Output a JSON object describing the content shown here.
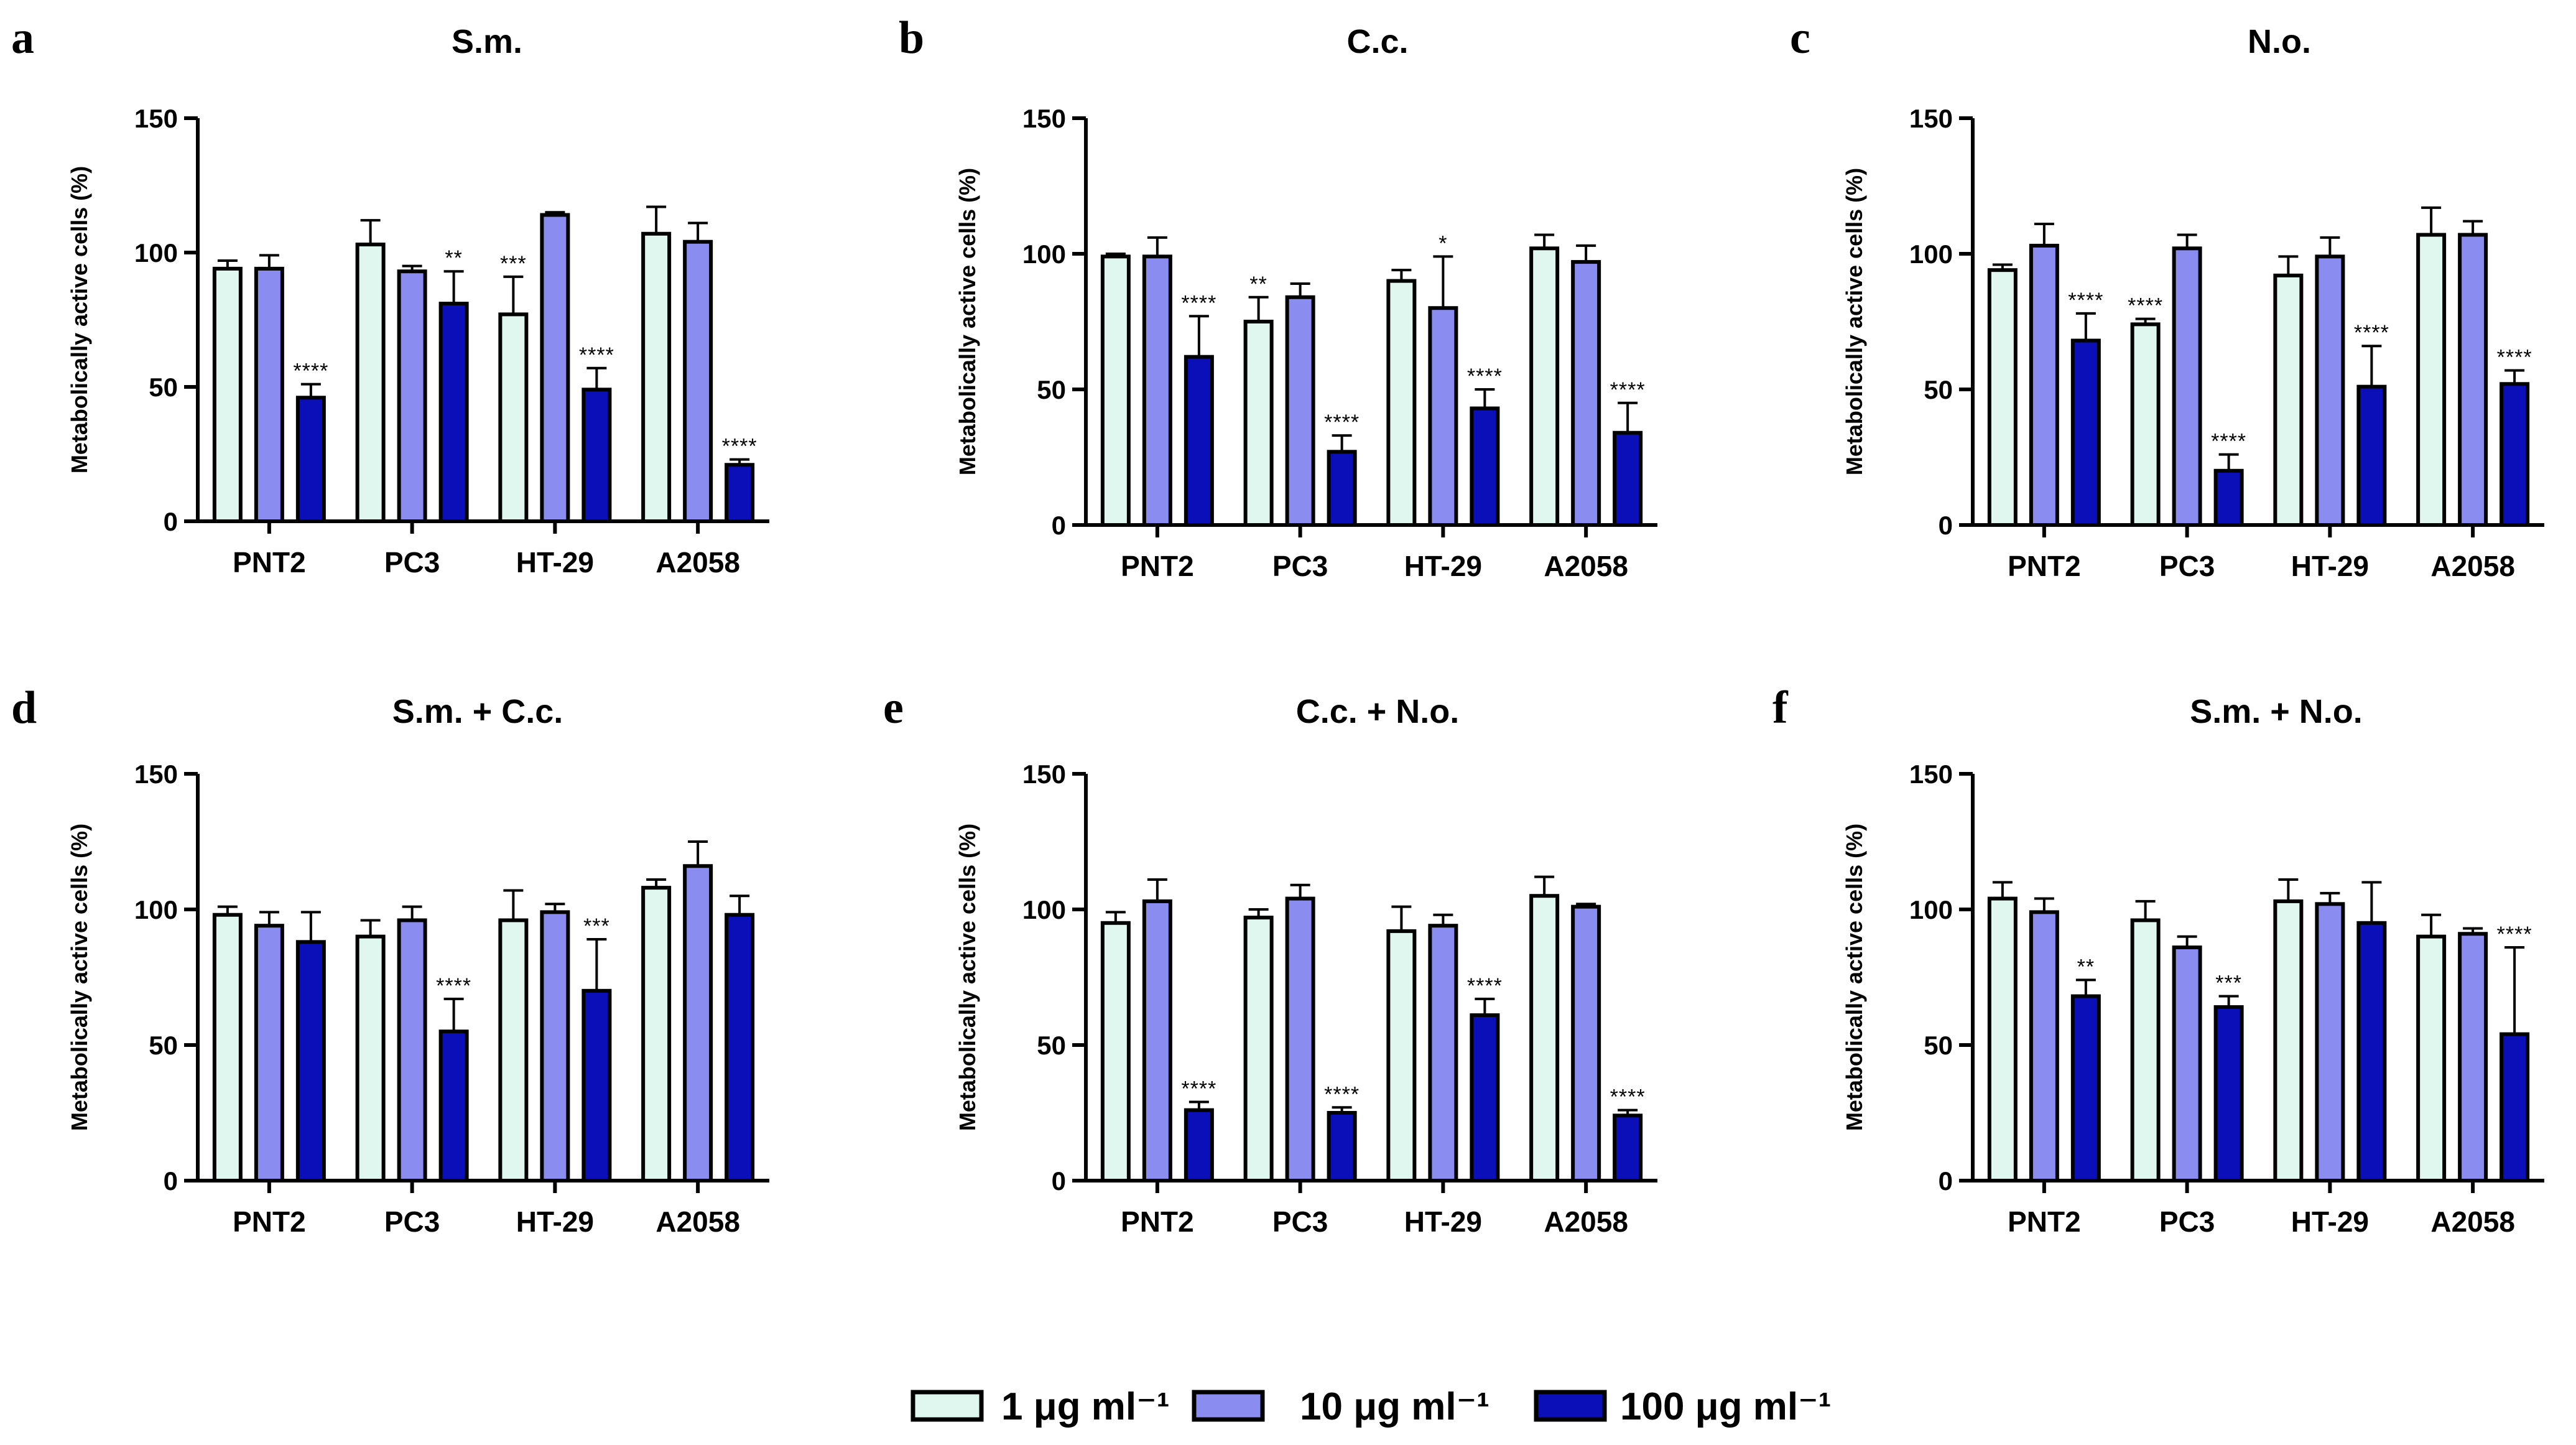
{
  "colors": {
    "c1": "#dff7ee",
    "c10": "#8a8cf0",
    "c100": "#0a0fb8",
    "axis": "#000000"
  },
  "legend": {
    "items": [
      {
        "label": "1 μg ml⁻¹",
        "color_key": "c1"
      },
      {
        "label": "10 μg ml⁻¹",
        "color_key": "c10"
      },
      {
        "label": "100 μg ml⁻¹",
        "color_key": "c100"
      }
    ]
  },
  "chart_data": [
    {
      "panel": "a",
      "title": "S.m.",
      "type": "bar",
      "ylabel": "Metabolically active cells (%)",
      "ylim": [
        0,
        150
      ],
      "yticks": [
        0,
        50,
        100,
        150
      ],
      "categories": [
        "PNT2",
        "PC3",
        "HT-29",
        "A2058"
      ],
      "series": [
        {
          "name": "1 μg ml⁻¹",
          "values": [
            94,
            103,
            77,
            107
          ],
          "errors": [
            3,
            9,
            14,
            10
          ],
          "stars": [
            "",
            "",
            "***",
            ""
          ]
        },
        {
          "name": "10 μg ml⁻¹",
          "values": [
            94,
            93,
            114,
            104
          ],
          "errors": [
            5,
            2,
            1,
            7
          ],
          "stars": [
            "",
            "",
            "",
            ""
          ]
        },
        {
          "name": "100 μg ml⁻¹",
          "values": [
            46,
            81,
            49,
            21
          ],
          "errors": [
            5,
            12,
            8,
            2
          ],
          "stars": [
            "****",
            "**",
            "****",
            "****"
          ]
        }
      ]
    },
    {
      "panel": "b",
      "title": "C.c.",
      "type": "bar",
      "ylabel": "Metabolically active cells (%)",
      "ylim": [
        0,
        150
      ],
      "yticks": [
        0,
        50,
        100,
        150
      ],
      "categories": [
        "PNT2",
        "PC3",
        "HT-29",
        "A2058"
      ],
      "series": [
        {
          "name": "1 μg ml⁻¹",
          "values": [
            99,
            75,
            90,
            102
          ],
          "errors": [
            1,
            9,
            4,
            5
          ],
          "stars": [
            "",
            "**",
            "",
            ""
          ]
        },
        {
          "name": "10 μg ml⁻¹",
          "values": [
            99,
            84,
            80,
            97
          ],
          "errors": [
            7,
            5,
            19,
            6
          ],
          "stars": [
            "",
            "",
            "*",
            ""
          ]
        },
        {
          "name": "100 μg ml⁻¹",
          "values": [
            62,
            27,
            43,
            34
          ],
          "errors": [
            15,
            6,
            7,
            11
          ],
          "stars": [
            "****",
            "****",
            "****",
            "****"
          ]
        }
      ]
    },
    {
      "panel": "c",
      "title": "N.o.",
      "type": "bar",
      "ylabel": "Metabolically active cells (%)",
      "ylim": [
        0,
        150
      ],
      "yticks": [
        0,
        50,
        100,
        150
      ],
      "categories": [
        "PNT2",
        "PC3",
        "HT-29",
        "A2058"
      ],
      "series": [
        {
          "name": "1 μg ml⁻¹",
          "values": [
            94,
            74,
            92,
            107
          ],
          "errors": [
            2,
            2,
            7,
            10
          ],
          "stars": [
            "",
            "****",
            "",
            ""
          ]
        },
        {
          "name": "10 μg ml⁻¹",
          "values": [
            103,
            102,
            99,
            107
          ],
          "errors": [
            8,
            5,
            7,
            5
          ],
          "stars": [
            "",
            "",
            "",
            ""
          ]
        },
        {
          "name": "100 μg ml⁻¹",
          "values": [
            68,
            20,
            51,
            52
          ],
          "errors": [
            10,
            6,
            15,
            5
          ],
          "stars": [
            "****",
            "****",
            "****",
            "****"
          ]
        }
      ]
    },
    {
      "panel": "d",
      "title": "S.m. + C.c.",
      "type": "bar",
      "ylabel": "Metabolically active cells (%)",
      "ylim": [
        0,
        150
      ],
      "yticks": [
        0,
        50,
        100,
        150
      ],
      "categories": [
        "PNT2",
        "PC3",
        "HT-29",
        "A2058"
      ],
      "series": [
        {
          "name": "1 μg ml⁻¹",
          "values": [
            98,
            90,
            96,
            108
          ],
          "errors": [
            3,
            6,
            11,
            3
          ],
          "stars": [
            "",
            "",
            "",
            ""
          ]
        },
        {
          "name": "10 μg ml⁻¹",
          "values": [
            94,
            96,
            99,
            116
          ],
          "errors": [
            5,
            5,
            3,
            9
          ],
          "stars": [
            "",
            "",
            "",
            ""
          ]
        },
        {
          "name": "100 μg ml⁻¹",
          "values": [
            88,
            55,
            70,
            98
          ],
          "errors": [
            11,
            12,
            19,
            7
          ],
          "stars": [
            "",
            "****",
            "***",
            ""
          ]
        }
      ]
    },
    {
      "panel": "e",
      "title": "C.c. + N.o.",
      "type": "bar",
      "ylabel": "Metabolically active cells (%)",
      "ylim": [
        0,
        150
      ],
      "yticks": [
        0,
        50,
        100,
        150
      ],
      "categories": [
        "PNT2",
        "PC3",
        "HT-29",
        "A2058"
      ],
      "series": [
        {
          "name": "1 μg ml⁻¹",
          "values": [
            95,
            97,
            92,
            105
          ],
          "errors": [
            4,
            3,
            9,
            7
          ],
          "stars": [
            "",
            "",
            "",
            ""
          ]
        },
        {
          "name": "10 μg ml⁻¹",
          "values": [
            103,
            104,
            94,
            101
          ],
          "errors": [
            8,
            5,
            4,
            1
          ],
          "stars": [
            "",
            "",
            "",
            ""
          ]
        },
        {
          "name": "100 μg ml⁻¹",
          "values": [
            26,
            25,
            61,
            24
          ],
          "errors": [
            3,
            2,
            6,
            2
          ],
          "stars": [
            "****",
            "****",
            "****",
            "****"
          ]
        }
      ]
    },
    {
      "panel": "f",
      "title": "S.m. + N.o.",
      "type": "bar",
      "ylabel": "Metabolically active cells (%)",
      "ylim": [
        0,
        150
      ],
      "yticks": [
        0,
        50,
        100,
        150
      ],
      "categories": [
        "PNT2",
        "PC3",
        "HT-29",
        "A2058"
      ],
      "series": [
        {
          "name": "1 μg ml⁻¹",
          "values": [
            104,
            96,
            103,
            90
          ],
          "errors": [
            6,
            7,
            8,
            8
          ],
          "stars": [
            "",
            "",
            "",
            ""
          ]
        },
        {
          "name": "10 μg ml⁻¹",
          "values": [
            99,
            86,
            102,
            91
          ],
          "errors": [
            5,
            4,
            4,
            2
          ],
          "stars": [
            "",
            "",
            "",
            ""
          ]
        },
        {
          "name": "100 μg ml⁻¹",
          "values": [
            68,
            64,
            95,
            54
          ],
          "errors": [
            6,
            4,
            15,
            32
          ],
          "stars": [
            "**",
            "***",
            "",
            "****"
          ]
        }
      ]
    }
  ]
}
